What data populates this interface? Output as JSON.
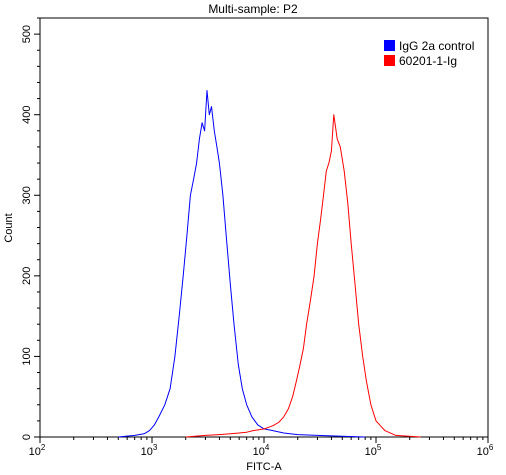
{
  "chart_data": {
    "type": "line",
    "title": "Multi-sample: P2",
    "xlabel": "FITC-A",
    "ylabel": "Count",
    "x_scale": "log",
    "xlim": [
      100,
      1000000
    ],
    "ylim": [
      0,
      520
    ],
    "x_ticks": [
      {
        "base": "10",
        "exp": "2",
        "value": 100
      },
      {
        "base": "10",
        "exp": "3",
        "value": 1000
      },
      {
        "base": "10",
        "exp": "4",
        "value": 10000
      },
      {
        "base": "10",
        "exp": "5",
        "value": 100000
      },
      {
        "base": "10",
        "exp": "6",
        "value": 1000000
      }
    ],
    "y_ticks": [
      0,
      100,
      200,
      300,
      400,
      500
    ],
    "legend_position": "top-right",
    "series": [
      {
        "name": "IgG 2a control",
        "color": "#0000ff",
        "x": [
          500,
          700,
          850,
          950,
          1050,
          1150,
          1300,
          1450,
          1600,
          1750,
          1900,
          2050,
          2200,
          2350,
          2500,
          2650,
          2800,
          2950,
          3100,
          3250,
          3400,
          3600,
          3800,
          4000,
          4300,
          4600,
          5000,
          5400,
          5900,
          6400,
          7000,
          7800,
          8800,
          10000,
          12000,
          15000,
          20000,
          30000,
          50000,
          80000
        ],
        "y": [
          0,
          2,
          4,
          8,
          15,
          25,
          40,
          60,
          100,
          150,
          200,
          250,
          300,
          320,
          340,
          370,
          390,
          380,
          430,
          400,
          410,
          380,
          360,
          340,
          300,
          250,
          190,
          140,
          90,
          60,
          40,
          25,
          15,
          10,
          8,
          5,
          3,
          2,
          1,
          0
        ]
      },
      {
        "name": "60201-1-Ig",
        "color": "#ff0000",
        "x": [
          2000,
          3000,
          4000,
          5000,
          6000,
          7000,
          8000,
          9000,
          10000,
          11000,
          12000,
          13500,
          15000,
          16500,
          18000,
          19500,
          21000,
          22500,
          24000,
          26000,
          28000,
          30000,
          32000,
          34000,
          36000,
          38000,
          40000,
          42000,
          45000,
          48000,
          52000,
          56000,
          60000,
          65000,
          70000,
          76000,
          82000,
          90000,
          100000,
          120000,
          150000,
          250000
        ],
        "y": [
          0,
          2,
          3,
          4,
          5,
          6,
          8,
          9,
          10,
          12,
          14,
          18,
          25,
          35,
          50,
          70,
          90,
          110,
          140,
          170,
          200,
          240,
          270,
          300,
          330,
          340,
          355,
          400,
          370,
          360,
          330,
          290,
          240,
          190,
          140,
          100,
          70,
          40,
          20,
          8,
          2,
          0
        ]
      }
    ]
  }
}
